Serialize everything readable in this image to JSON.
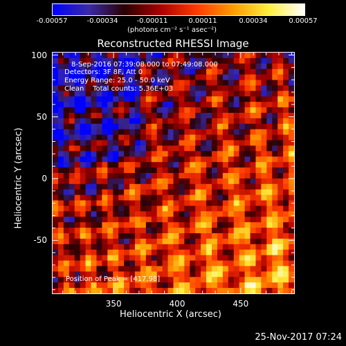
{
  "colorbar": {
    "ticks": [
      "-0.00057",
      "-0.00034",
      "-0.00011",
      "0.00011",
      "0.00034",
      "0.00057"
    ],
    "unit_label": "(photons cm⁻² s⁻¹ asec⁻²)",
    "stops": [
      "#0000ff",
      "#3a2aa8",
      "#2a0000",
      "#aa0000",
      "#ff3a00",
      "#ff9a00",
      "#ffee40",
      "#ffffff"
    ]
  },
  "chart_data": {
    "type": "heatmap",
    "title": "Reconstructed RHESSI Image",
    "xlabel": "Heliocentric X (arcsec)",
    "ylabel": "Heliocentric Y (arcsec)",
    "xlim": [
      302,
      492
    ],
    "ylim": [
      -93,
      102
    ],
    "xticks": [
      350,
      400,
      450
    ],
    "yticks": [
      -50,
      0,
      50,
      100
    ],
    "value_range": [
      -0.00057,
      0.00057
    ],
    "annotations": [
      "8-Sep-2016 07:39:08.000 to 07:49:08.000",
      "Detectors: 3F 8F, Att 0",
      "Energy Range: 25.0 - 50.0 keV",
      "Clean    Total counts: 5.36E+03"
    ],
    "peak_label": "Position of Peak = [417,98]"
  },
  "timestamp": "25-Nov-2017 07:24"
}
